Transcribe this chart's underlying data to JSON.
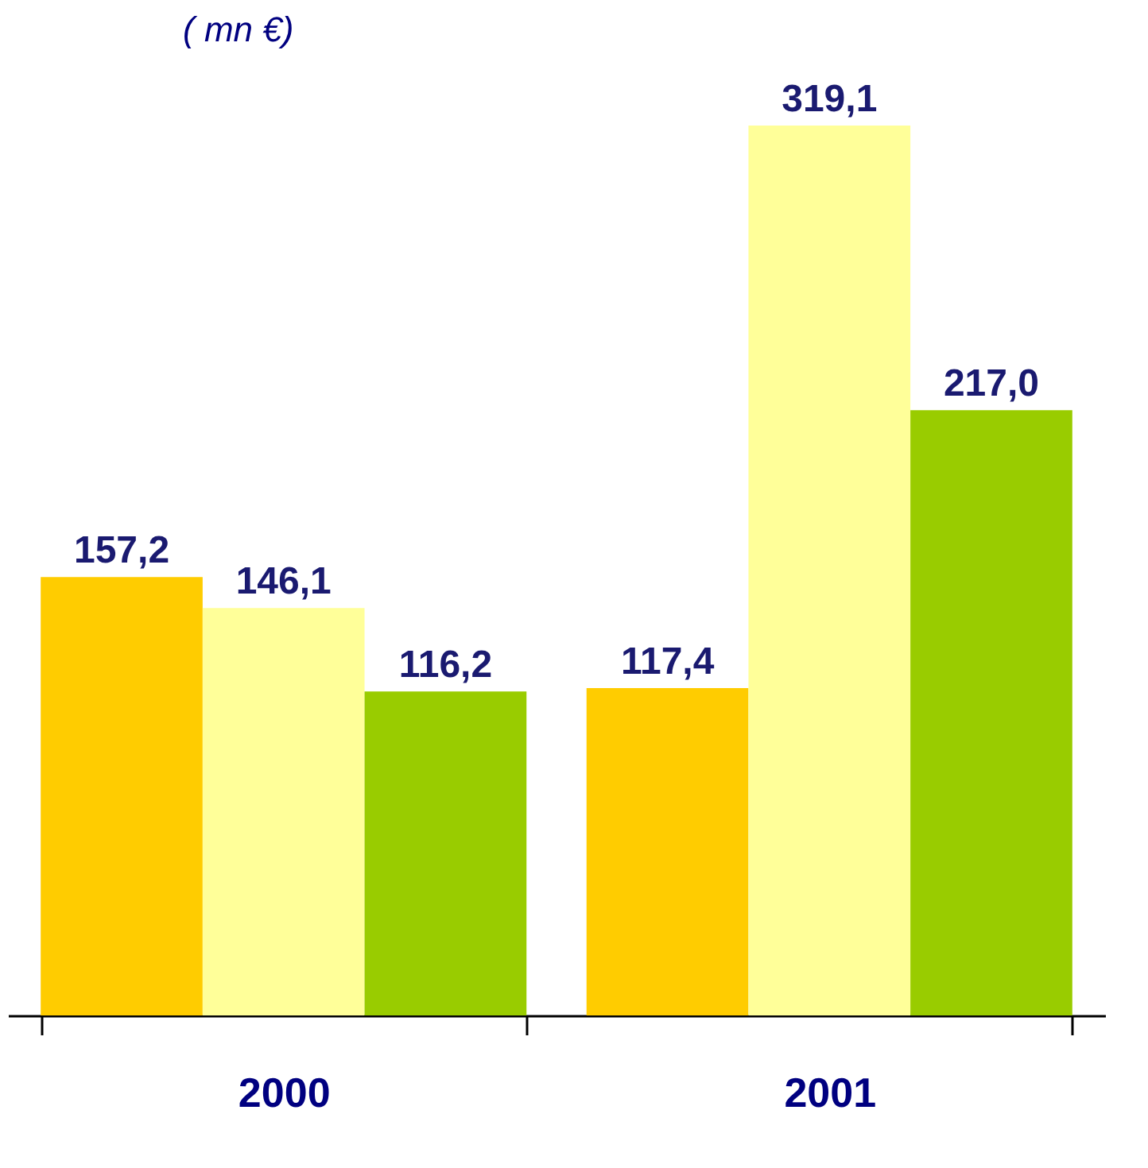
{
  "chart_data": {
    "type": "bar",
    "title": "( mn €)",
    "categories": [
      "2000",
      "2001"
    ],
    "series": [
      {
        "color": "#ffcc00",
        "values": [
          157.2,
          117.4
        ],
        "value_labels": [
          "157,2",
          "117,4"
        ]
      },
      {
        "color": "#ffff99",
        "values": [
          146.1,
          319.1
        ],
        "value_labels": [
          "146,1",
          "319,1"
        ]
      },
      {
        "color": "#99cc00",
        "values": [
          116.2,
          217.0
        ],
        "value_labels": [
          "116,2",
          "217,0"
        ]
      }
    ],
    "tick_labels": "x",
    "grid": false,
    "legend": false
  }
}
